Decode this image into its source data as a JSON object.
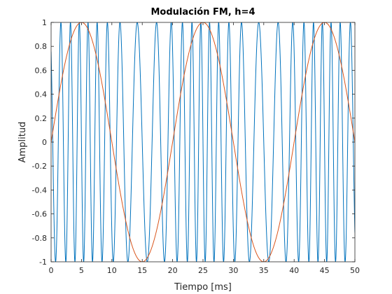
{
  "chart_data": {
    "type": "line",
    "title": "Modulación FM, h=4",
    "xlabel": "Tiempo [ms]",
    "ylabel": "Amplitud",
    "xlim": [
      0,
      50
    ],
    "ylim": [
      -1,
      1
    ],
    "xticks": [
      0,
      5,
      10,
      15,
      20,
      25,
      30,
      35,
      40,
      45,
      50
    ],
    "yticks": [
      -1,
      -0.8,
      -0.6,
      -0.4,
      -0.2,
      0,
      0.2,
      0.4,
      0.6,
      0.8,
      1
    ],
    "xtick_labels": [
      "0",
      "5",
      "10",
      "15",
      "20",
      "25",
      "30",
      "35",
      "40",
      "45",
      "50"
    ],
    "ytick_labels": [
      "-1",
      "-0.8",
      "-0.6",
      "-0.4",
      "-0.2",
      "0",
      "0.2",
      "0.4",
      "0.6",
      "0.8",
      "1"
    ],
    "grid": false,
    "series": [
      {
        "color": "#0072BD",
        "function": "fm_carrier",
        "carrier_frequency_khz": 0.5,
        "modulating_frequency_khz": 0.05,
        "modulation_index": 4
      },
      {
        "color": "#D95319",
        "function": "sine",
        "frequency_khz": 0.05,
        "amplitude": 1
      }
    ]
  }
}
